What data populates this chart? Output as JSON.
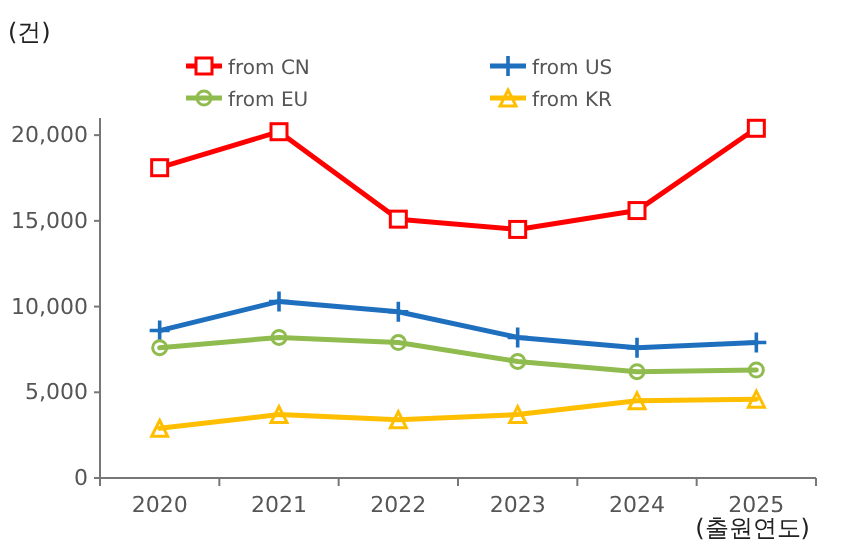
{
  "chart_data": {
    "type": "line",
    "ylabel": "(건)",
    "xlabel": "(출원연도)",
    "categories": [
      "2020",
      "2021",
      "2022",
      "2023",
      "2024",
      "2025"
    ],
    "series": [
      {
        "name": "from CN",
        "color": "#ff0000",
        "marker": "square",
        "values": [
          18100,
          20200,
          15100,
          14500,
          15600,
          20400
        ]
      },
      {
        "name": "from US",
        "color": "#1f6fbf",
        "marker": "cross",
        "values": [
          8600,
          10300,
          9700,
          8200,
          7600,
          7900
        ]
      },
      {
        "name": "from EU",
        "color": "#8fbb4f",
        "marker": "circle",
        "values": [
          7600,
          8200,
          7900,
          6800,
          6200,
          6300
        ]
      },
      {
        "name": "from KR",
        "color": "#ffbf00",
        "marker": "triangle",
        "values": [
          2900,
          3700,
          3400,
          3700,
          4500,
          4600
        ]
      }
    ],
    "ylim": [
      0,
      21000
    ],
    "yticks": [
      0,
      {
        "value": 5000,
        "label": "5,000"
      },
      {
        "value": 10000,
        "label": "10,000"
      },
      {
        "value": 15000,
        "label": "15,000"
      },
      {
        "value": 20000,
        "label": "20,000"
      }
    ],
    "grid": false,
    "legend": "top",
    "line_style": "solid"
  }
}
